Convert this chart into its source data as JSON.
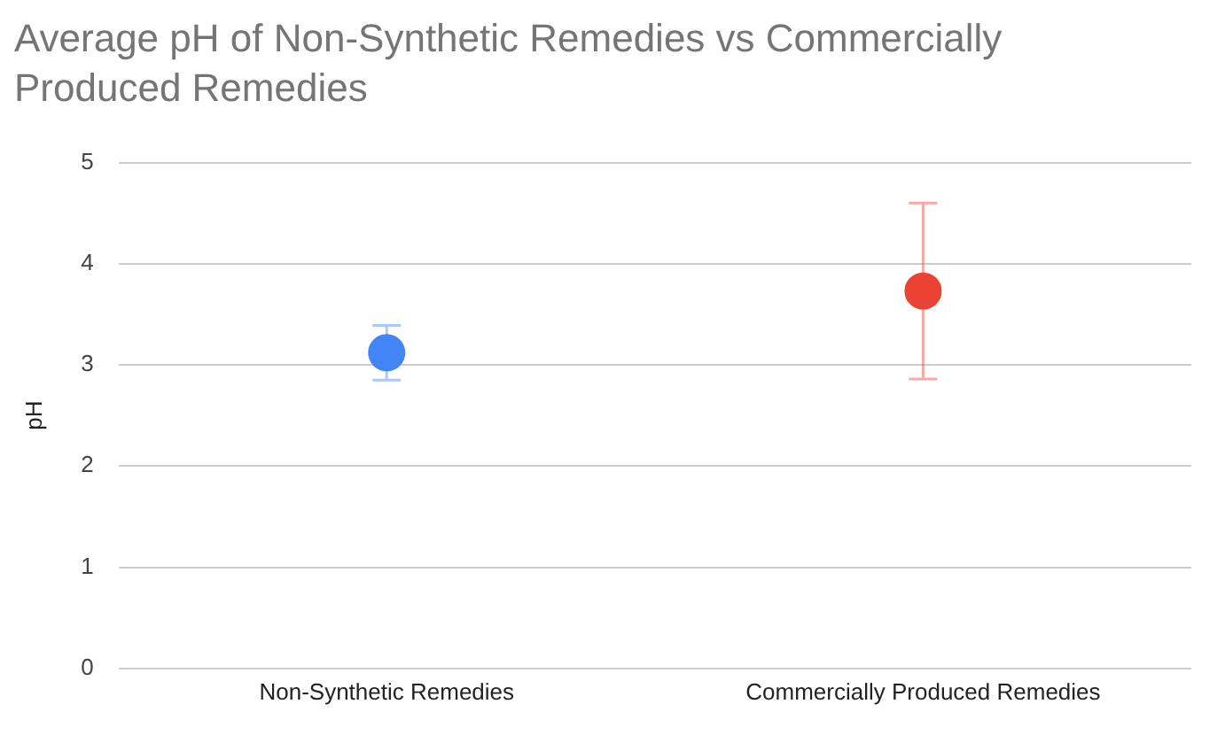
{
  "chart_data": {
    "type": "scatter",
    "title": "Average pH of Non-Synthetic Remedies vs Commercially Produced Remedies",
    "ylabel": "pH",
    "categories": [
      "Non-Synthetic Remedies",
      "Commercially Produced Remedies"
    ],
    "values": [
      3.12,
      3.73
    ],
    "colors": [
      "#4285f4",
      "#ea4335"
    ],
    "errors": [
      0.27,
      0.87
    ],
    "ylim": [
      0,
      5
    ],
    "yticks": [
      0,
      1,
      2,
      3,
      4,
      5
    ],
    "grid": "y",
    "legend": false,
    "marker": "circle"
  }
}
